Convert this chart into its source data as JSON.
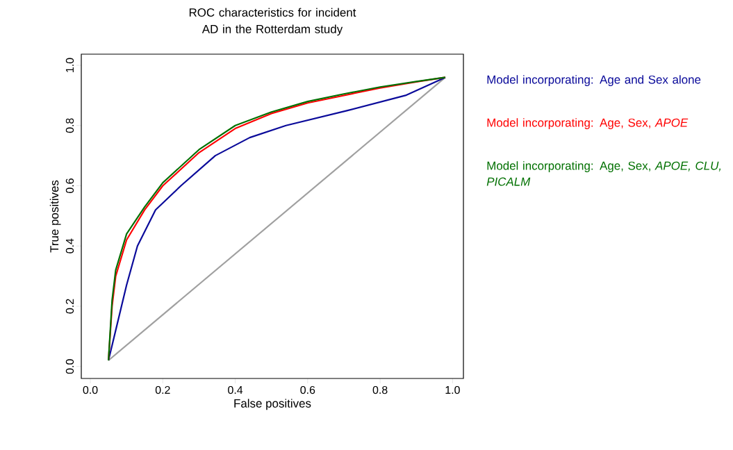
{
  "chart_data": {
    "type": "line",
    "title": "ROC characteristics for incident AD in the Rotterdam study",
    "xlabel": "False positives",
    "ylabel": "True positives",
    "xlim": [
      -0.025,
      1.03
    ],
    "ylim": [
      -0.04,
      1.037
    ],
    "xticks": [
      {
        "value": 0,
        "label": "0.0"
      },
      0.2,
      0.4,
      0.6,
      0.8,
      {
        "value": 1,
        "label": "1.0"
      }
    ],
    "yticks": [
      {
        "value": 0,
        "label": "0.0"
      },
      0.2,
      0.4,
      0.6,
      0.8,
      {
        "value": 1,
        "label": "1.0"
      }
    ],
    "grid": false,
    "legend": "right",
    "marker": "none",
    "line_style": "solid",
    "series": [
      {
        "color": "#a0a0a0",
        "x": [
          0.05,
          0.98
        ],
        "values": [
          0.02,
          0.96
        ]
      },
      {
        "name": "Model incorporating: Age and Sex alone",
        "color": "#0a0a9a",
        "x": [
          0.05,
          0.07,
          0.1,
          0.13,
          0.18,
          0.25,
          0.345,
          0.44,
          0.54,
          0.71,
          0.87,
          0.98
        ],
        "values": [
          0.02,
          0.12,
          0.27,
          0.4,
          0.52,
          0.6,
          0.7,
          0.76,
          0.8,
          0.85,
          0.9,
          0.96
        ]
      },
      {
        "name": "Model incorporating: Age, Sex, *APOE*",
        "color": "#ff0000",
        "x": [
          0.05,
          0.06,
          0.07,
          0.1,
          0.15,
          0.2,
          0.3,
          0.4,
          0.5,
          0.6,
          0.7,
          0.8,
          0.9,
          0.98
        ],
        "values": [
          0.02,
          0.2,
          0.3,
          0.42,
          0.52,
          0.6,
          0.71,
          0.79,
          0.84,
          0.875,
          0.9,
          0.925,
          0.945,
          0.96
        ]
      },
      {
        "name": "Model incorporating: Age, Sex, *APOE, CLU, PICALM*",
        "color": "#007000",
        "x": [
          0.05,
          0.06,
          0.07,
          0.1,
          0.15,
          0.2,
          0.3,
          0.4,
          0.5,
          0.6,
          0.7,
          0.8,
          0.9,
          0.98
        ],
        "values": [
          0.02,
          0.22,
          0.32,
          0.44,
          0.53,
          0.61,
          0.72,
          0.8,
          0.845,
          0.88,
          0.905,
          0.928,
          0.946,
          0.96
        ]
      }
    ]
  }
}
